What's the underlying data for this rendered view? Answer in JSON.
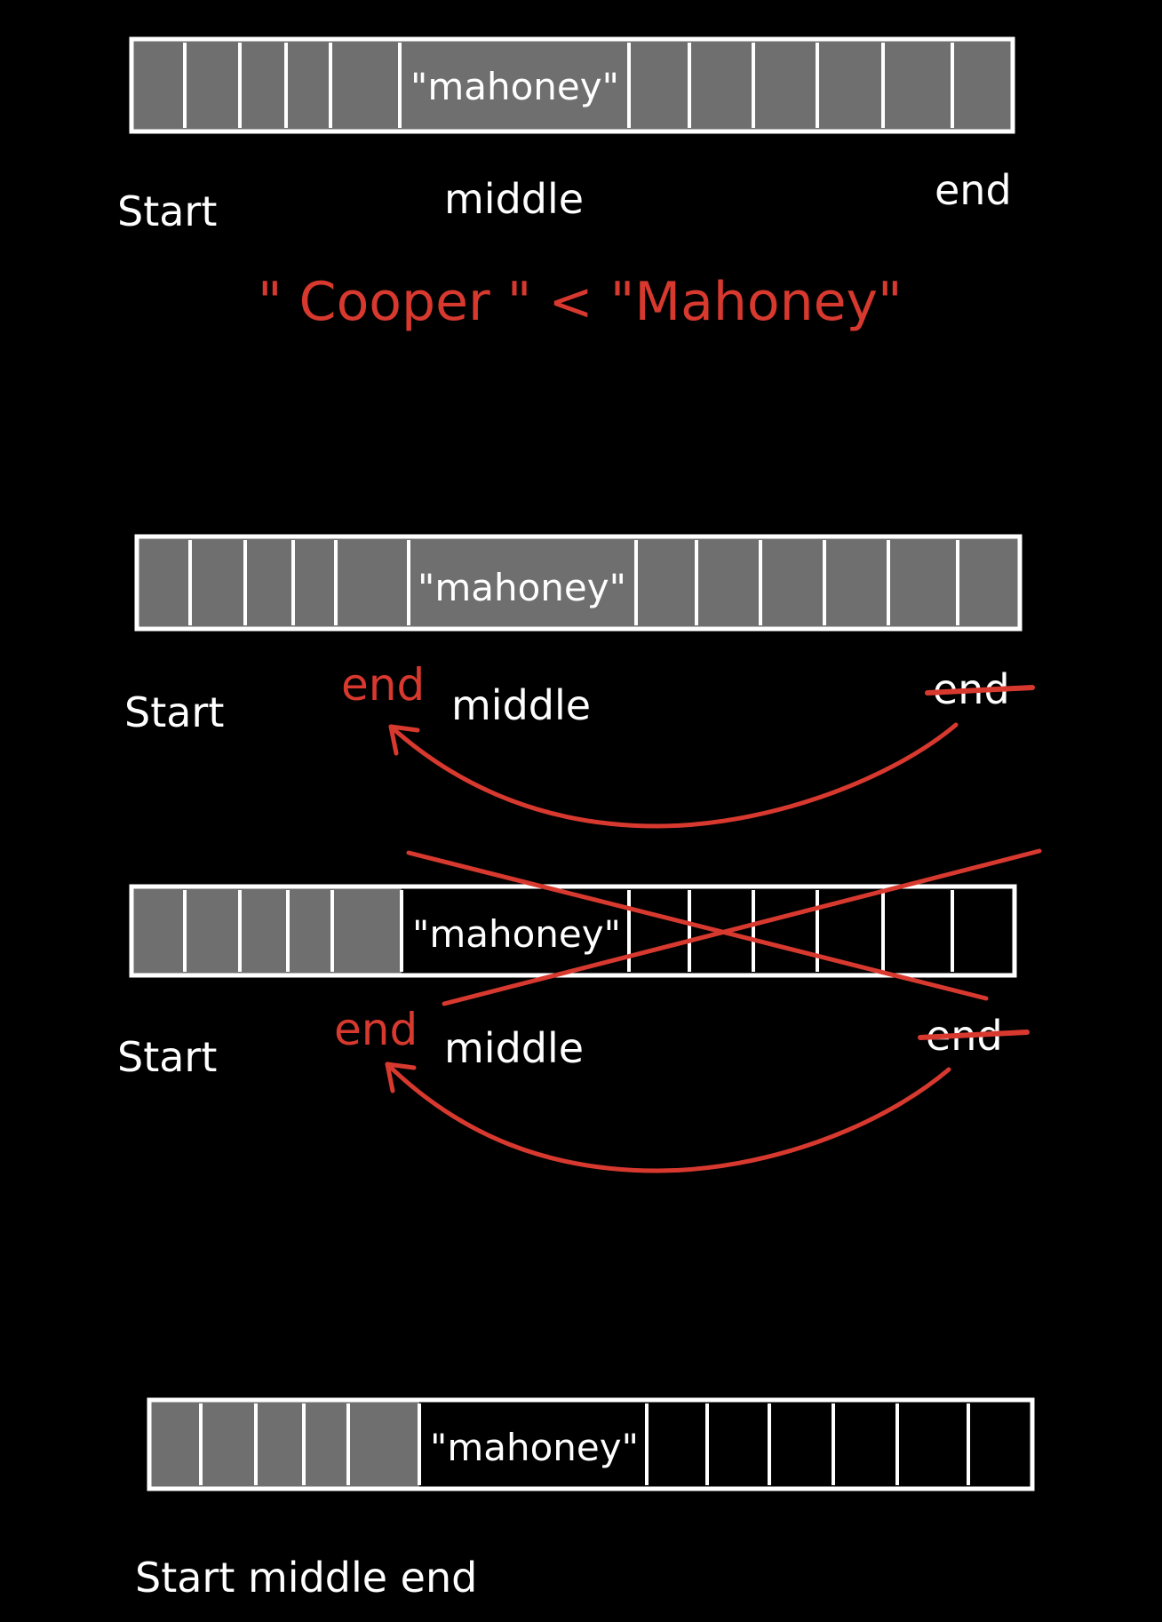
{
  "colors": {
    "background": "#000000",
    "filled_cell": "#6f6f6f",
    "ink_white": "#ffffff",
    "ink_red": "#d8392f"
  },
  "cell_label": "\"mahoney\"",
  "comparison": "\" Cooper \" < \"Mahoney\"",
  "labels": {
    "start": "Start",
    "middle": "middle",
    "end": "end",
    "final_row": "Start middle end"
  },
  "arrays": [
    {
      "filled_cells": 12,
      "total_cells": 12,
      "middle_index": 4
    },
    {
      "filled_cells": 12,
      "total_cells": 12,
      "middle_index": 4
    },
    {
      "filled_cells": 4,
      "total_cells": 12,
      "middle_index": 4
    },
    {
      "filled_cells": 4,
      "total_cells": 12,
      "middle_index": 4
    }
  ]
}
